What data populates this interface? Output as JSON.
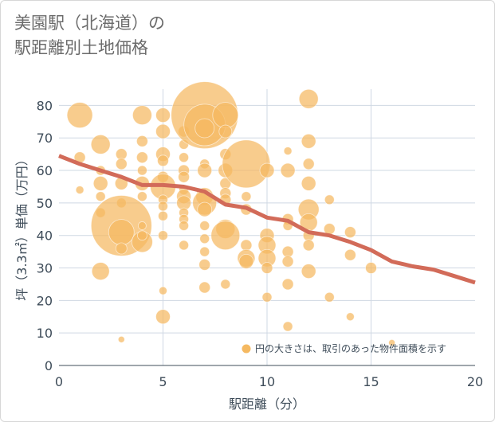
{
  "title": {
    "line1": "美園駅（北海道）の",
    "line2": "駅距離別土地価格"
  },
  "chart_data": {
    "type": "scatter",
    "xlabel": "駅距離（分）",
    "ylabel": "坪（3.3㎡）単価（万円）",
    "xlim": [
      0,
      20
    ],
    "ylim": [
      0,
      85
    ],
    "xticks": [
      "0",
      "5",
      "10",
      "15",
      "20"
    ],
    "yticks": [
      "0",
      "10",
      "20",
      "30",
      "40",
      "50",
      "60",
      "70",
      "80"
    ],
    "grid": true,
    "legend": "円の大きさは、取引のあった物件面積を示す",
    "legend_position": "bottom-right",
    "bubble_color": "#f5b961",
    "trend_color": "#d26b59",
    "points": [
      {
        "x": 1,
        "y": 77,
        "s": 16
      },
      {
        "x": 1,
        "y": 64,
        "s": 7
      },
      {
        "x": 1,
        "y": 54,
        "s": 5
      },
      {
        "x": 2,
        "y": 68,
        "s": 12
      },
      {
        "x": 2,
        "y": 60,
        "s": 6
      },
      {
        "x": 2,
        "y": 56,
        "s": 9
      },
      {
        "x": 2,
        "y": 52,
        "s": 6
      },
      {
        "x": 2,
        "y": 47,
        "s": 6
      },
      {
        "x": 2,
        "y": 29,
        "s": 11
      },
      {
        "x": 3,
        "y": 65,
        "s": 7
      },
      {
        "x": 3,
        "y": 62,
        "s": 7
      },
      {
        "x": 3,
        "y": 56,
        "s": 8
      },
      {
        "x": 3,
        "y": 50,
        "s": 6
      },
      {
        "x": 3,
        "y": 43,
        "s": 38
      },
      {
        "x": 3,
        "y": 41,
        "s": 16
      },
      {
        "x": 3,
        "y": 36,
        "s": 7
      },
      {
        "x": 3,
        "y": 8,
        "s": 4
      },
      {
        "x": 4,
        "y": 77,
        "s": 12
      },
      {
        "x": 4,
        "y": 69,
        "s": 7
      },
      {
        "x": 4,
        "y": 64,
        "s": 7
      },
      {
        "x": 4,
        "y": 60,
        "s": 6
      },
      {
        "x": 4,
        "y": 56,
        "s": 9
      },
      {
        "x": 4,
        "y": 52,
        "s": 6
      },
      {
        "x": 4,
        "y": 43,
        "s": 5
      },
      {
        "x": 4,
        "y": 38,
        "s": 13
      },
      {
        "x": 4,
        "y": 40,
        "s": 6
      },
      {
        "x": 5,
        "y": 77,
        "s": 9
      },
      {
        "x": 5,
        "y": 72,
        "s": 9
      },
      {
        "x": 5,
        "y": 65,
        "s": 9
      },
      {
        "x": 5,
        "y": 63,
        "s": 7
      },
      {
        "x": 5,
        "y": 58,
        "s": 7
      },
      {
        "x": 5,
        "y": 55,
        "s": 16
      },
      {
        "x": 5,
        "y": 51,
        "s": 6
      },
      {
        "x": 5,
        "y": 49,
        "s": 6
      },
      {
        "x": 5,
        "y": 46,
        "s": 6
      },
      {
        "x": 5,
        "y": 40,
        "s": 6
      },
      {
        "x": 5,
        "y": 23,
        "s": 5
      },
      {
        "x": 5,
        "y": 15,
        "s": 9
      },
      {
        "x": 6,
        "y": 72,
        "s": 7
      },
      {
        "x": 6,
        "y": 68,
        "s": 6
      },
      {
        "x": 6,
        "y": 64,
        "s": 6
      },
      {
        "x": 6,
        "y": 60,
        "s": 7
      },
      {
        "x": 6,
        "y": 58,
        "s": 7
      },
      {
        "x": 6,
        "y": 54,
        "s": 6
      },
      {
        "x": 6,
        "y": 52,
        "s": 9
      },
      {
        "x": 6,
        "y": 50,
        "s": 9
      },
      {
        "x": 6,
        "y": 47,
        "s": 6
      },
      {
        "x": 6,
        "y": 45,
        "s": 6
      },
      {
        "x": 6,
        "y": 43,
        "s": 6
      },
      {
        "x": 6,
        "y": 37,
        "s": 6
      },
      {
        "x": 7,
        "y": 77,
        "s": 42
      },
      {
        "x": 7,
        "y": 74,
        "s": 26
      },
      {
        "x": 7,
        "y": 73,
        "s": 12
      },
      {
        "x": 7,
        "y": 62,
        "s": 6
      },
      {
        "x": 7,
        "y": 60,
        "s": 9
      },
      {
        "x": 7,
        "y": 52,
        "s": 11
      },
      {
        "x": 7,
        "y": 50,
        "s": 15
      },
      {
        "x": 7,
        "y": 48,
        "s": 9
      },
      {
        "x": 7,
        "y": 43,
        "s": 6
      },
      {
        "x": 7,
        "y": 39,
        "s": 6
      },
      {
        "x": 7,
        "y": 35,
        "s": 6
      },
      {
        "x": 7,
        "y": 31,
        "s": 7
      },
      {
        "x": 7,
        "y": 24,
        "s": 7
      },
      {
        "x": 8,
        "y": 77,
        "s": 16
      },
      {
        "x": 8,
        "y": 72,
        "s": 8
      },
      {
        "x": 8,
        "y": 65,
        "s": 7
      },
      {
        "x": 8,
        "y": 60,
        "s": 9
      },
      {
        "x": 8,
        "y": 56,
        "s": 7
      },
      {
        "x": 8,
        "y": 53,
        "s": 7
      },
      {
        "x": 8,
        "y": 51,
        "s": 7
      },
      {
        "x": 8,
        "y": 42,
        "s": 12
      },
      {
        "x": 8,
        "y": 40,
        "s": 18
      },
      {
        "x": 8,
        "y": 25,
        "s": 6
      },
      {
        "x": 9,
        "y": 62,
        "s": 30
      },
      {
        "x": 9,
        "y": 52,
        "s": 6
      },
      {
        "x": 9,
        "y": 48,
        "s": 7
      },
      {
        "x": 9,
        "y": 37,
        "s": 7
      },
      {
        "x": 9,
        "y": 33,
        "s": 11
      },
      {
        "x": 9,
        "y": 32,
        "s": 9
      },
      {
        "x": 10,
        "y": 60,
        "s": 9
      },
      {
        "x": 10,
        "y": 40,
        "s": 9
      },
      {
        "x": 10,
        "y": 37,
        "s": 11
      },
      {
        "x": 10,
        "y": 33,
        "s": 11
      },
      {
        "x": 10,
        "y": 30,
        "s": 7
      },
      {
        "x": 10,
        "y": 21,
        "s": 6
      },
      {
        "x": 11,
        "y": 66,
        "s": 5
      },
      {
        "x": 11,
        "y": 60,
        "s": 9
      },
      {
        "x": 11,
        "y": 45,
        "s": 7
      },
      {
        "x": 11,
        "y": 43,
        "s": 6
      },
      {
        "x": 11,
        "y": 35,
        "s": 7
      },
      {
        "x": 11,
        "y": 32,
        "s": 7
      },
      {
        "x": 11,
        "y": 25,
        "s": 7
      },
      {
        "x": 11,
        "y": 12,
        "s": 6
      },
      {
        "x": 12,
        "y": 82,
        "s": 12
      },
      {
        "x": 12,
        "y": 69,
        "s": 9
      },
      {
        "x": 12,
        "y": 62,
        "s": 7
      },
      {
        "x": 12,
        "y": 56,
        "s": 9
      },
      {
        "x": 12,
        "y": 48,
        "s": 13
      },
      {
        "x": 12,
        "y": 44,
        "s": 11
      },
      {
        "x": 12,
        "y": 40,
        "s": 7
      },
      {
        "x": 12,
        "y": 37,
        "s": 7
      },
      {
        "x": 12,
        "y": 29,
        "s": 9
      },
      {
        "x": 13,
        "y": 51,
        "s": 6
      },
      {
        "x": 13,
        "y": 42,
        "s": 7
      },
      {
        "x": 13,
        "y": 21,
        "s": 6
      },
      {
        "x": 14,
        "y": 41,
        "s": 7
      },
      {
        "x": 14,
        "y": 34,
        "s": 7
      },
      {
        "x": 14,
        "y": 15,
        "s": 5
      },
      {
        "x": 15,
        "y": 30,
        "s": 7
      },
      {
        "x": 16,
        "y": 7,
        "s": 4
      }
    ],
    "trend": [
      {
        "x": 0,
        "y": 64.5
      },
      {
        "x": 1,
        "y": 62
      },
      {
        "x": 2,
        "y": 60
      },
      {
        "x": 3,
        "y": 58
      },
      {
        "x": 4,
        "y": 55.5
      },
      {
        "x": 5,
        "y": 55.5
      },
      {
        "x": 6,
        "y": 55
      },
      {
        "x": 7,
        "y": 53.5
      },
      {
        "x": 8,
        "y": 49.5
      },
      {
        "x": 9,
        "y": 48.5
      },
      {
        "x": 10,
        "y": 45.5
      },
      {
        "x": 11,
        "y": 44.5
      },
      {
        "x": 12,
        "y": 41
      },
      {
        "x": 13,
        "y": 40
      },
      {
        "x": 14,
        "y": 38
      },
      {
        "x": 15,
        "y": 35.5
      },
      {
        "x": 16,
        "y": 32
      },
      {
        "x": 17,
        "y": 30.5
      },
      {
        "x": 18,
        "y": 29.5
      },
      {
        "x": 19,
        "y": 27.5
      },
      {
        "x": 20,
        "y": 25.5
      }
    ]
  }
}
